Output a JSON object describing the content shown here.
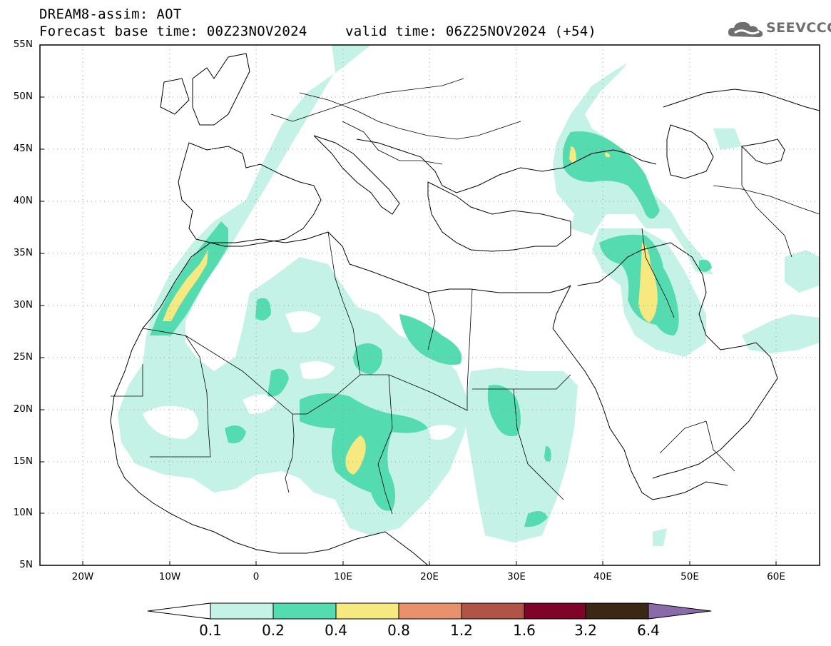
{
  "header": {
    "title_line1": "DREAM8-assim: AOT",
    "title_line2": "Forecast base time: 00Z23NOV2024",
    "valid_time": "valid time: 06Z25NOV2024 (+54)",
    "logo_text": "SEEVCCC",
    "logo_icon": "cloud-logo-icon"
  },
  "map": {
    "lon_range": [
      -25,
      65
    ],
    "lat_range": [
      5,
      55
    ],
    "lat_labels": [
      "55N",
      "50N",
      "45N",
      "40N",
      "35N",
      "30N",
      "25N",
      "20N",
      "15N",
      "10N",
      "5N"
    ],
    "lon_labels": [
      "20W",
      "10W",
      "0",
      "10E",
      "20E",
      "30E",
      "40E",
      "50E",
      "60E"
    ],
    "grid": true
  },
  "legend": {
    "colors": [
      "#c4f2e6",
      "#55dbb0",
      "#f5e97f",
      "#e9916c",
      "#b05448",
      "#7e0528",
      "#3b2714",
      "#8a6aa9"
    ],
    "labels": [
      "0.1",
      "0.2",
      "0.4",
      "0.8",
      "1.2",
      "1.6",
      "3.2",
      "6.4"
    ]
  }
}
